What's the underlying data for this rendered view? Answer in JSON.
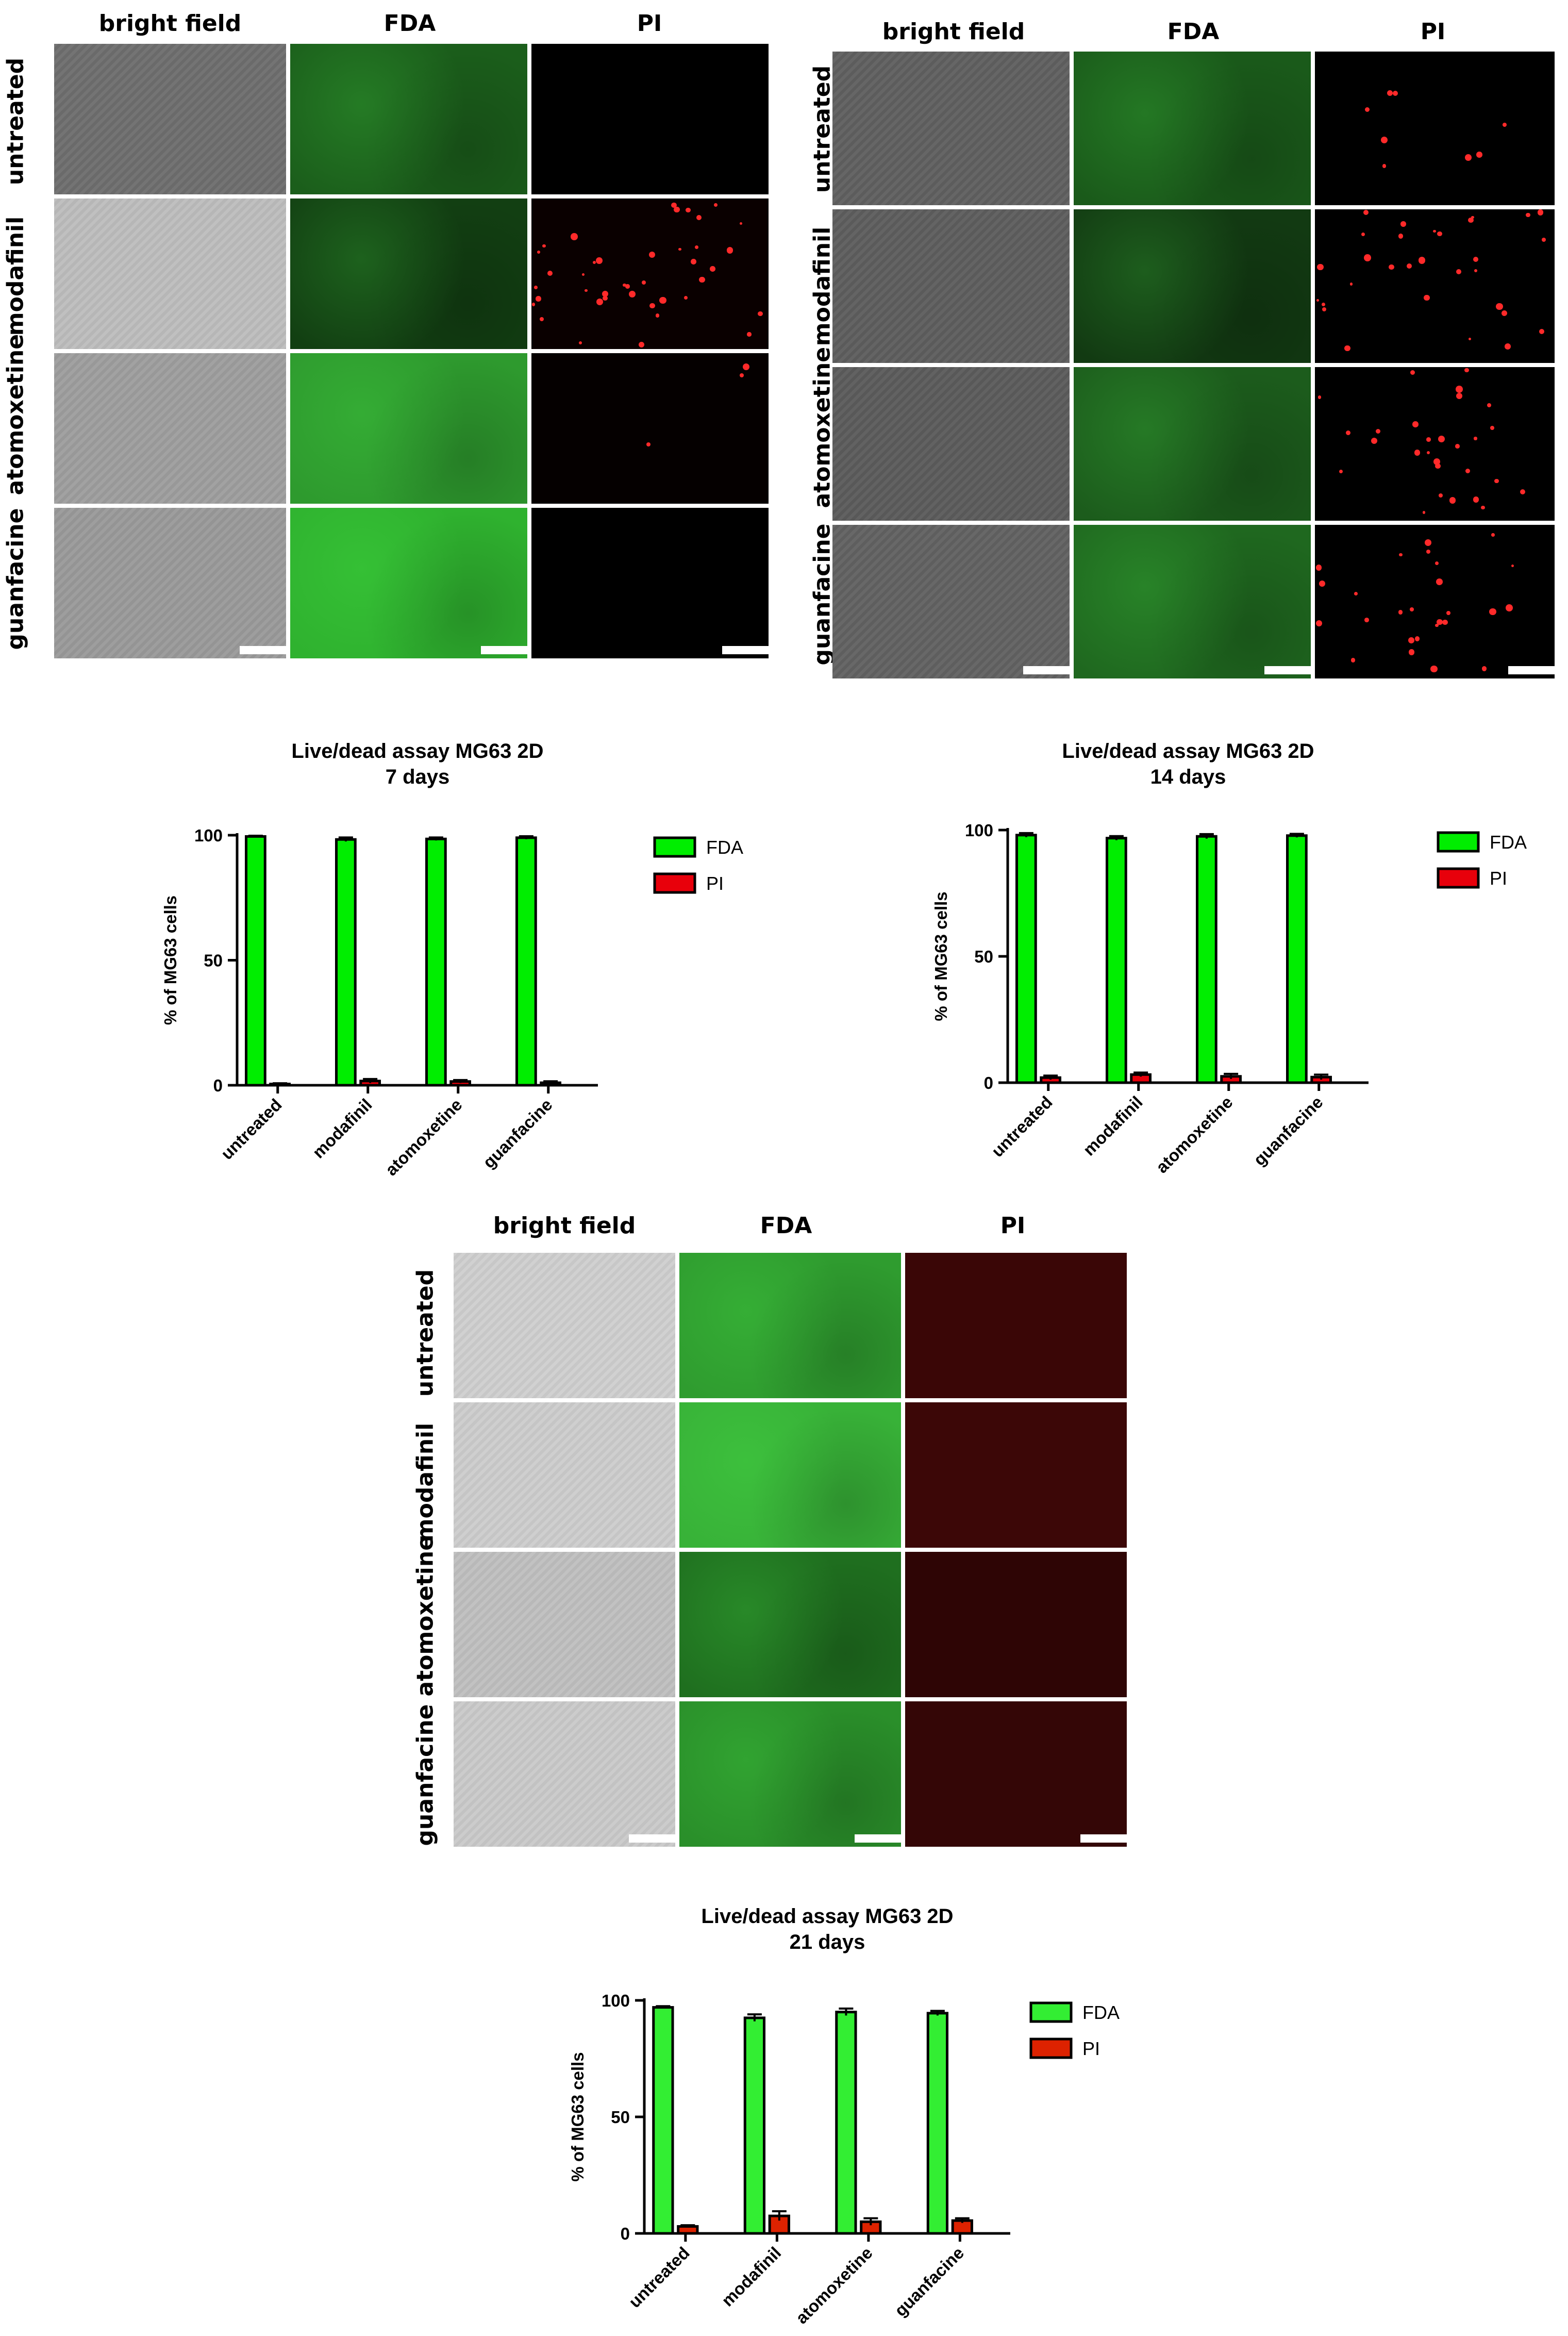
{
  "micrograph_panels": [
    {
      "columns": [
        "bright field",
        "FDA",
        "PI"
      ],
      "rows": [
        "untreated",
        "modafinil",
        "atomoxetine",
        "guanfacine"
      ],
      "bf_colors": [
        "#6e6e6e",
        "#bdbdbd",
        "#9e9e9e",
        "#9a9a9a"
      ],
      "fda_colors": [
        "#1b5e1b",
        "#123f12",
        "#2e9a2e",
        "#2fb22f"
      ],
      "pi_colors": [
        "#000000",
        "#0a0000",
        "#050000",
        "#000000"
      ],
      "pi_dots": [
        0,
        40,
        3,
        0
      ]
    },
    {
      "columns": [
        "bright field",
        "FDA",
        "PI"
      ],
      "rows": [
        "untreated",
        "modafinil",
        "atomoxetine",
        "guanfacine"
      ],
      "bf_colors": [
        "#606060",
        "#5e5e5e",
        "#5c5c5c",
        "#626262"
      ],
      "fda_colors": [
        "#1a5a1a",
        "#123a12",
        "#1c5c1c",
        "#1f681f"
      ],
      "pi_colors": [
        "#000000",
        "#000000",
        "#000000",
        "#000000"
      ],
      "pi_dots": [
        8,
        30,
        28,
        26
      ]
    },
    {
      "columns": [
        "bright field",
        "FDA",
        "PI"
      ],
      "rows": [
        "untreated",
        "modafinil",
        "atomoxetine",
        "guanfacine"
      ],
      "bf_colors": [
        "#cfcfcf",
        "#cdcdcd",
        "#bfbfbf",
        "#cacaca"
      ],
      "fda_colors": [
        "#2f9c2f",
        "#38b238",
        "#1f6f1f",
        "#2a8f2a"
      ],
      "pi_colors": [
        "#3a0606",
        "#3c0707",
        "#2e0505",
        "#340606"
      ],
      "pi_dots": [
        0,
        0,
        0,
        0
      ]
    }
  ],
  "chart_data": [
    {
      "type": "bar",
      "title": "Live/dead assay MG63 2D",
      "subtitle": "7 days",
      "ylabel": "% of MG63 cells",
      "ylim": [
        0,
        100
      ],
      "yticks": [
        "0",
        "50",
        "100"
      ],
      "categories": [
        "untreated",
        "modafinil",
        "atomoxetine",
        "guanfacine"
      ],
      "series": [
        {
          "name": "FDA",
          "color": "#00ee00",
          "values": [
            99.5,
            98.3,
            98.5,
            99.0
          ],
          "errors": [
            0.3,
            0.8,
            0.6,
            0.6
          ]
        },
        {
          "name": "PI",
          "color": "#e8000b",
          "values": [
            0.5,
            1.7,
            1.5,
            1.0
          ],
          "errors": [
            0.3,
            0.8,
            0.6,
            0.6
          ]
        }
      ],
      "legend": "right"
    },
    {
      "type": "bar",
      "title": "Live/dead assay MG63 2D",
      "subtitle": "14 days",
      "ylabel": "% of MG63 cells",
      "ylim": [
        0,
        100
      ],
      "yticks": [
        "0",
        "50",
        "100"
      ],
      "categories": [
        "untreated",
        "modafinil",
        "atomoxetine",
        "guanfacine"
      ],
      "series": [
        {
          "name": "FDA",
          "color": "#00ee00",
          "values": [
            98.0,
            96.8,
            97.5,
            97.8
          ],
          "errors": [
            0.8,
            0.8,
            0.9,
            0.7
          ]
        },
        {
          "name": "PI",
          "color": "#e8000b",
          "values": [
            2.0,
            3.2,
            2.5,
            2.2
          ],
          "errors": [
            0.8,
            0.8,
            1.0,
            1.0
          ]
        }
      ],
      "legend": "right"
    },
    {
      "type": "bar",
      "title": "Live/dead assay MG63 2D",
      "subtitle": "21 days",
      "ylabel": "% of MG63 cells",
      "ylim": [
        0,
        100
      ],
      "yticks": [
        "0",
        "50",
        "100"
      ],
      "categories": [
        "untreated",
        "modafinil",
        "atomoxetine",
        "guanfacine"
      ],
      "series": [
        {
          "name": "FDA",
          "color": "#33ee33",
          "values": [
            97.0,
            92.5,
            95.0,
            94.5
          ],
          "errors": [
            0.5,
            1.5,
            1.5,
            1.0
          ]
        },
        {
          "name": "PI",
          "color": "#dd2200",
          "values": [
            3.0,
            7.5,
            5.0,
            5.5
          ],
          "errors": [
            0.5,
            2.0,
            1.5,
            1.0
          ]
        }
      ],
      "legend": "right"
    }
  ]
}
